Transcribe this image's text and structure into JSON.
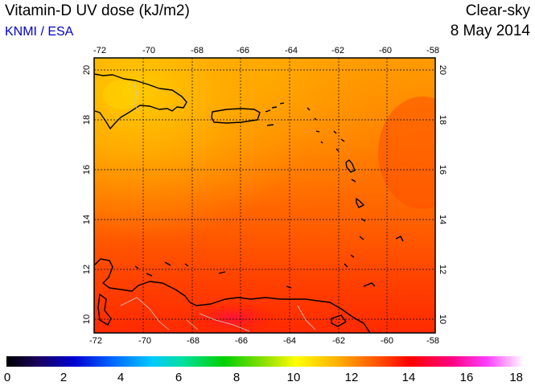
{
  "header": {
    "title": "Vitamin-D UV dose (kJ/m2)",
    "organization": "KNMI / ESA",
    "sky_condition": "Clear-sky",
    "date": "8 May 2014",
    "organization_color": "#0000cc"
  },
  "map": {
    "lon_ticks": [
      "-72",
      "-70",
      "-68",
      "-66",
      "-64",
      "-62",
      "-60",
      "-58"
    ],
    "lat_ticks": [
      "10",
      "12",
      "14",
      "16",
      "18",
      "20"
    ],
    "lon_range": [
      -72,
      -58
    ],
    "lat_range": [
      9.5,
      20.5
    ],
    "coastline_color": "#000000",
    "border_color": "#c8c8c8",
    "gridline_color": "#000000"
  },
  "colorbar": {
    "ticks": [
      "0",
      "2",
      "4",
      "6",
      "8",
      "10",
      "12",
      "14",
      "16",
      "18"
    ],
    "range": [
      0,
      18
    ]
  }
}
